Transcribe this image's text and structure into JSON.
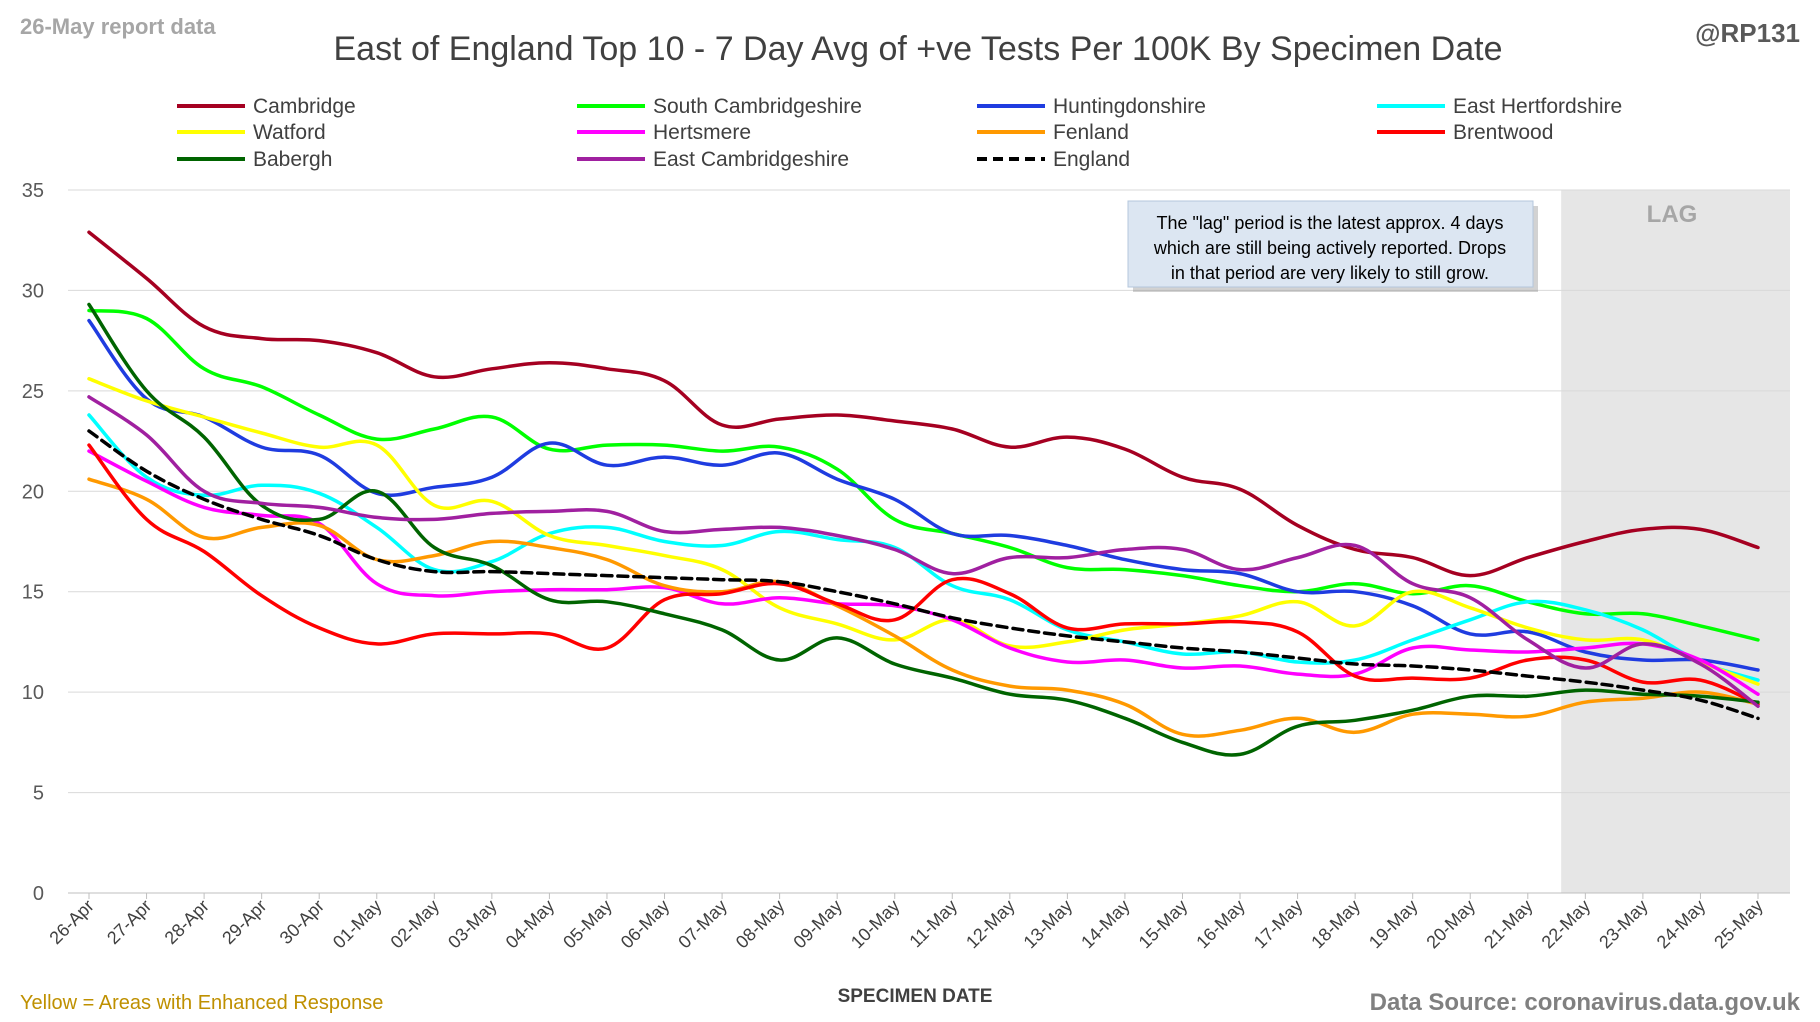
{
  "header": {
    "report_label": "26-May report data",
    "title": "East of England Top 10 - 7 Day Avg of +ve Tests Per 100K By Specimen Date",
    "handle": "@RP131"
  },
  "footer": {
    "enhanced_note": "Yellow = Areas with Enhanced Response",
    "source": "Data Source: coronavirus.data.gov.uk"
  },
  "lag": {
    "label": "LAG",
    "note_lines": [
      "The \"lag\" period is the latest approx. 4 days",
      "which are still being actively reported.  Drops",
      "in that period are very likely to still grow."
    ]
  },
  "colors": {
    "lag_shade": "#e6e6e6",
    "grid": "#d9d9d9",
    "note_bg": "#dce6f2",
    "report_label": "#a6a6a6",
    "enhanced_note": "#bf9000",
    "source": "#808080"
  },
  "chart_data": {
    "type": "line",
    "title": "East of England Top 10 - 7 Day Avg of +ve Tests Per 100K By Specimen Date",
    "xlabel": "SPECIMEN DATE",
    "ylabel": "",
    "ylim": [
      0,
      35
    ],
    "yticks": [
      0,
      5,
      10,
      15,
      20,
      25,
      30,
      35
    ],
    "grid": true,
    "legend_position": "top",
    "categories": [
      "26-Apr",
      "27-Apr",
      "28-Apr",
      "29-Apr",
      "30-Apr",
      "01-May",
      "02-May",
      "03-May",
      "04-May",
      "05-May",
      "06-May",
      "07-May",
      "08-May",
      "09-May",
      "10-May",
      "11-May",
      "12-May",
      "13-May",
      "14-May",
      "15-May",
      "16-May",
      "17-May",
      "18-May",
      "19-May",
      "20-May",
      "21-May",
      "22-May",
      "23-May",
      "24-May",
      "25-May"
    ],
    "lag_start_category": "22-May",
    "series": [
      {
        "name": "Cambridge",
        "color": "#a50021",
        "dashed": false,
        "values": [
          32.9,
          30.6,
          28.2,
          27.6,
          27.5,
          26.9,
          25.7,
          26.1,
          26.4,
          26.1,
          25.5,
          23.3,
          23.6,
          23.8,
          23.5,
          23.1,
          22.2,
          22.7,
          22.1,
          20.7,
          20.1,
          18.3,
          17.1,
          16.7,
          15.8,
          16.7,
          17.5,
          18.1,
          18.1,
          17.2
        ]
      },
      {
        "name": "South Cambridgeshire",
        "color": "#00ff00",
        "dashed": false,
        "values": [
          29.0,
          28.6,
          26.1,
          25.2,
          23.8,
          22.6,
          23.1,
          23.7,
          22.1,
          22.3,
          22.3,
          22.0,
          22.2,
          21.1,
          18.6,
          17.9,
          17.2,
          16.2,
          16.1,
          15.8,
          15.3,
          15.0,
          15.4,
          14.9,
          15.3,
          14.5,
          13.9,
          13.9,
          13.3,
          12.6
        ]
      },
      {
        "name": "Huntingdonshire",
        "color": "#1f3ce0",
        "dashed": false,
        "values": [
          28.5,
          24.6,
          23.7,
          22.2,
          21.8,
          19.9,
          20.2,
          20.7,
          22.4,
          21.3,
          21.7,
          21.3,
          21.9,
          20.6,
          19.6,
          17.9,
          17.8,
          17.3,
          16.6,
          16.1,
          15.9,
          15.0,
          15.0,
          14.3,
          12.9,
          13.0,
          12.0,
          11.6,
          11.6,
          11.1
        ]
      },
      {
        "name": "East Hertfordshire",
        "color": "#00ffff",
        "dashed": false,
        "values": [
          23.8,
          20.7,
          19.8,
          20.3,
          19.9,
          18.2,
          16.1,
          16.5,
          17.9,
          18.2,
          17.5,
          17.3,
          18.0,
          17.6,
          17.2,
          15.3,
          14.6,
          13.1,
          12.5,
          11.9,
          12.0,
          11.5,
          11.6,
          12.6,
          13.6,
          14.5,
          14.1,
          13.1,
          11.5,
          10.6
        ]
      },
      {
        "name": "Watford",
        "color": "#ffff00",
        "dashed": false,
        "values": [
          25.6,
          24.5,
          23.7,
          22.9,
          22.2,
          22.3,
          19.3,
          19.5,
          17.8,
          17.3,
          16.8,
          16.1,
          14.2,
          13.4,
          12.6,
          13.6,
          12.3,
          12.5,
          13.1,
          13.4,
          13.8,
          14.5,
          13.3,
          15.0,
          14.2,
          13.2,
          12.6,
          12.6,
          11.5,
          10.4
        ]
      },
      {
        "name": "Hertsmere",
        "color": "#ff00ff",
        "dashed": false,
        "values": [
          22.0,
          20.5,
          19.2,
          18.8,
          18.4,
          15.4,
          14.8,
          15.0,
          15.1,
          15.1,
          15.2,
          14.4,
          14.7,
          14.4,
          14.3,
          13.6,
          12.2,
          11.5,
          11.6,
          11.2,
          11.3,
          10.9,
          10.9,
          12.2,
          12.1,
          12.0,
          12.2,
          12.4,
          11.6,
          9.9
        ]
      },
      {
        "name": "Fenland",
        "color": "#ff9900",
        "dashed": false,
        "values": [
          20.6,
          19.6,
          17.7,
          18.2,
          18.3,
          16.6,
          16.8,
          17.5,
          17.2,
          16.6,
          15.3,
          15.0,
          15.5,
          14.3,
          12.8,
          11.1,
          10.3,
          10.1,
          9.4,
          7.9,
          8.1,
          8.7,
          8.0,
          8.9,
          8.9,
          8.8,
          9.5,
          9.7,
          10.0,
          9.4
        ]
      },
      {
        "name": "Brentwood",
        "color": "#ff0000",
        "dashed": false,
        "values": [
          22.3,
          18.6,
          17.0,
          14.8,
          13.2,
          12.4,
          12.9,
          12.9,
          12.9,
          12.2,
          14.6,
          14.9,
          15.4,
          14.4,
          13.6,
          15.6,
          14.9,
          13.2,
          13.4,
          13.4,
          13.5,
          13.0,
          10.8,
          10.7,
          10.7,
          11.6,
          11.6,
          10.5,
          10.6,
          9.4
        ]
      },
      {
        "name": "Babergh",
        "color": "#006400",
        "dashed": false,
        "values": [
          29.3,
          25.0,
          22.7,
          19.3,
          18.6,
          20.0,
          17.2,
          16.3,
          14.6,
          14.5,
          13.9,
          13.1,
          11.6,
          12.7,
          11.4,
          10.7,
          9.9,
          9.6,
          8.7,
          7.5,
          6.9,
          8.3,
          8.6,
          9.1,
          9.8,
          9.8,
          10.1,
          9.9,
          9.8,
          9.5
        ]
      },
      {
        "name": "East Cambridgeshire",
        "color": "#a020a0",
        "dashed": false,
        "values": [
          24.7,
          22.8,
          20.0,
          19.4,
          19.2,
          18.7,
          18.6,
          18.9,
          19.0,
          19.0,
          18.0,
          18.1,
          18.2,
          17.8,
          17.1,
          15.9,
          16.7,
          16.7,
          17.1,
          17.1,
          16.1,
          16.7,
          17.3,
          15.4,
          14.7,
          12.6,
          11.2,
          12.4,
          11.4,
          9.3
        ]
      },
      {
        "name": "England",
        "color": "#000000",
        "dashed": true,
        "values": [
          23.0,
          21.0,
          19.6,
          18.6,
          17.8,
          16.6,
          16.0,
          16.0,
          15.9,
          15.8,
          15.7,
          15.6,
          15.5,
          15.0,
          14.4,
          13.7,
          13.2,
          12.8,
          12.5,
          12.2,
          12.0,
          11.7,
          11.4,
          11.3,
          11.1,
          10.8,
          10.5,
          10.1,
          9.6,
          8.7
        ]
      }
    ]
  }
}
